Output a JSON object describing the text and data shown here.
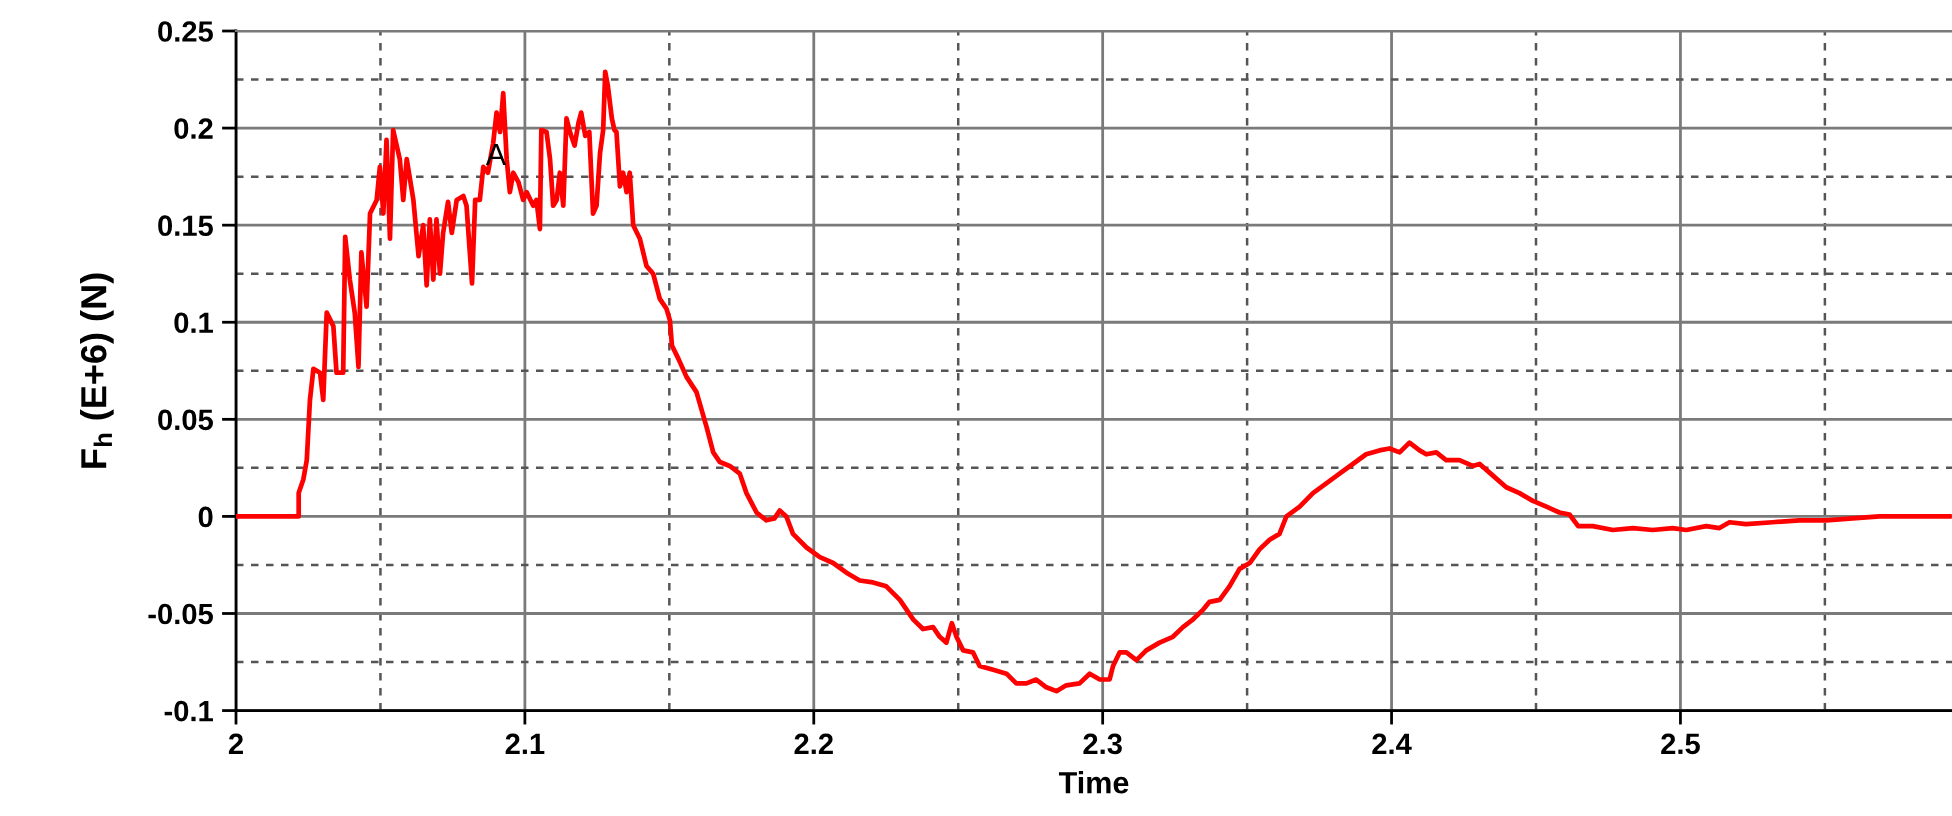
{
  "chart_data": {
    "type": "line",
    "xlabel": "Time",
    "ylabel": "F$_{h}$ (E+6) (N)",
    "x": [
      2.0,
      2.0217,
      2.0217,
      2.0233,
      2.0245,
      2.0256,
      2.0268,
      2.0291,
      2.0302,
      2.0314,
      2.0337,
      2.0348,
      2.0371,
      2.0378,
      2.0394,
      2.0411,
      2.0424,
      2.0434,
      2.0452,
      2.0464,
      2.0487,
      2.0498,
      2.051,
      2.0521,
      2.0533,
      2.0544,
      2.0567,
      2.0579,
      2.0591,
      2.0614,
      2.0632,
      2.0648,
      2.066,
      2.0671,
      2.0683,
      2.0694,
      2.0706,
      2.0717,
      2.0734,
      2.0747,
      2.0764,
      2.0787,
      2.0798,
      2.0817,
      2.0828,
      2.0844,
      2.0856,
      2.0872,
      2.089,
      2.0902,
      2.0914,
      2.0925,
      2.0937,
      2.0948,
      2.096,
      2.0978,
      2.0994,
      2.1006,
      2.1029,
      2.104,
      2.1052,
      2.1057,
      2.1075,
      2.1087,
      2.1098,
      2.111,
      2.1121,
      2.1133,
      2.1144,
      2.1156,
      2.1172,
      2.1186,
      2.1195,
      2.1209,
      2.1223,
      2.1236,
      2.1248,
      2.126,
      2.1271,
      2.1278,
      2.1287,
      2.1301,
      2.131,
      2.1317,
      2.1329,
      2.134,
      2.1352,
      2.1363,
      2.1375,
      2.1398,
      2.1421,
      2.1444,
      2.1467,
      2.149,
      2.1502,
      2.1509,
      2.1532,
      2.1559,
      2.1594,
      2.1629,
      2.1652,
      2.1675,
      2.1709,
      2.1744,
      2.1767,
      2.1802,
      2.1836,
      2.1864,
      2.1882,
      2.1905,
      2.1928,
      2.1975,
      2.2021,
      2.2067,
      2.2113,
      2.2159,
      2.2205,
      2.2251,
      2.2298,
      2.2344,
      2.2378,
      2.2413,
      2.2436,
      2.2459,
      2.2478,
      2.2494,
      2.2517,
      2.2551,
      2.2574,
      2.2621,
      2.2667,
      2.2701,
      2.2736,
      2.277,
      2.2805,
      2.284,
      2.2874,
      2.292,
      2.2955,
      2.299,
      2.3024,
      2.3036,
      2.3059,
      2.3082,
      2.3117,
      2.3151,
      2.3197,
      2.3243,
      2.3278,
      2.3313,
      2.3348,
      2.337,
      2.3405,
      2.3439,
      2.3474,
      2.3509,
      2.3543,
      2.3578,
      2.3612,
      2.3636,
      2.3682,
      2.3728,
      2.3774,
      2.382,
      2.3866,
      2.3912,
      2.3958,
      2.3993,
      2.4028,
      2.4062,
      2.4097,
      2.412,
      2.4155,
      2.4189,
      2.4235,
      2.4281,
      2.4305,
      2.4351,
      2.4397,
      2.4443,
      2.4489,
      2.4536,
      2.4581,
      2.4616,
      2.4646,
      2.4697,
      2.4766,
      2.4835,
      2.4904,
      2.4973,
      2.502,
      2.5089,
      2.5135,
      2.517,
      2.5227,
      2.5319,
      2.5412,
      2.5504,
      2.5596,
      2.5689,
      2.5804,
      2.5931
    ],
    "series": [
      {
        "color": "#ff0000",
        "values": [
          0,
          0,
          0.012,
          0.019,
          0.029,
          0.06,
          0.076,
          0.074,
          0.06,
          0.105,
          0.098,
          0.074,
          0.074,
          0.144,
          0.122,
          0.105,
          0.077,
          0.136,
          0.108,
          0.156,
          0.163,
          0.18,
          0.156,
          0.194,
          0.143,
          0.199,
          0.184,
          0.163,
          0.184,
          0.163,
          0.134,
          0.15,
          0.119,
          0.153,
          0.122,
          0.153,
          0.125,
          0.146,
          0.162,
          0.146,
          0.163,
          0.165,
          0.16,
          0.12,
          0.163,
          0.163,
          0.18,
          0.177,
          0.192,
          0.208,
          0.198,
          0.218,
          0.184,
          0.167,
          0.177,
          0.172,
          0.163,
          0.167,
          0.16,
          0.163,
          0.148,
          0.199,
          0.198,
          0.184,
          0.16,
          0.163,
          0.177,
          0.16,
          0.205,
          0.198,
          0.191,
          0.203,
          0.208,
          0.196,
          0.198,
          0.156,
          0.16,
          0.187,
          0.199,
          0.229,
          0.222,
          0.205,
          0.199,
          0.198,
          0.17,
          0.177,
          0.167,
          0.177,
          0.15,
          0.143,
          0.129,
          0.125,
          0.112,
          0.107,
          0.101,
          0.088,
          0.081,
          0.072,
          0.064,
          0.046,
          0.033,
          0.028,
          0.026,
          0.022,
          0.012,
          0.002,
          -0.002,
          -0.001,
          0.003,
          0,
          -0.009,
          -0.016,
          -0.021,
          -0.024,
          -0.029,
          -0.033,
          -0.034,
          -0.036,
          -0.043,
          -0.053,
          -0.058,
          -0.057,
          -0.062,
          -0.065,
          -0.055,
          -0.062,
          -0.069,
          -0.07,
          -0.077,
          -0.079,
          -0.081,
          -0.086,
          -0.086,
          -0.084,
          -0.088,
          -0.09,
          -0.087,
          -0.086,
          -0.081,
          -0.084,
          -0.084,
          -0.077,
          -0.07,
          -0.07,
          -0.074,
          -0.069,
          -0.065,
          -0.062,
          -0.057,
          -0.053,
          -0.048,
          -0.044,
          -0.043,
          -0.036,
          -0.027,
          -0.024,
          -0.017,
          -0.012,
          -0.009,
          0,
          0.005,
          0.012,
          0.017,
          0.022,
          0.027,
          0.032,
          0.034,
          0.035,
          0.033,
          0.038,
          0.034,
          0.032,
          0.033,
          0.029,
          0.029,
          0.026,
          0.027,
          0.021,
          0.015,
          0.012,
          0.008,
          0.005,
          0.002,
          0.001,
          -0.005,
          -0.005,
          -0.007,
          -0.006,
          -0.007,
          -0.006,
          -0.007,
          -0.005,
          -0.006,
          -0.003,
          -0.004,
          -0.003,
          -0.002,
          -0.002,
          -0.001,
          0,
          0,
          0
        ]
      }
    ],
    "xlim": [
      2,
      2.594
    ],
    "ylim": [
      -0.1,
      0.25
    ],
    "xticks": [
      2,
      {
        "value": 2.05,
        "label": null
      },
      2.1,
      {
        "value": 2.15,
        "label": null
      },
      2.2,
      {
        "value": 2.25,
        "label": null
      },
      2.3,
      {
        "value": 2.35,
        "label": null
      },
      2.4,
      {
        "value": 2.45,
        "label": null
      },
      2.5,
      {
        "value": 2.55,
        "label": null
      }
    ],
    "yticks": [
      -0.1,
      {
        "value": -0.075,
        "label": null
      },
      -0.05,
      {
        "value": -0.025,
        "label": null
      },
      0,
      {
        "value": 0.025,
        "label": null
      },
      0.05,
      {
        "value": 0.075,
        "label": null
      },
      0.1,
      {
        "value": 0.125,
        "label": null
      },
      0.15,
      {
        "value": 0.175,
        "label": null
      },
      0.2,
      {
        "value": 0.225,
        "label": null
      },
      0.25
    ],
    "grid": true,
    "line_style": "solid",
    "annotations": [
      {
        "text": "A",
        "x": 2.09,
        "y": 0.185
      }
    ]
  }
}
